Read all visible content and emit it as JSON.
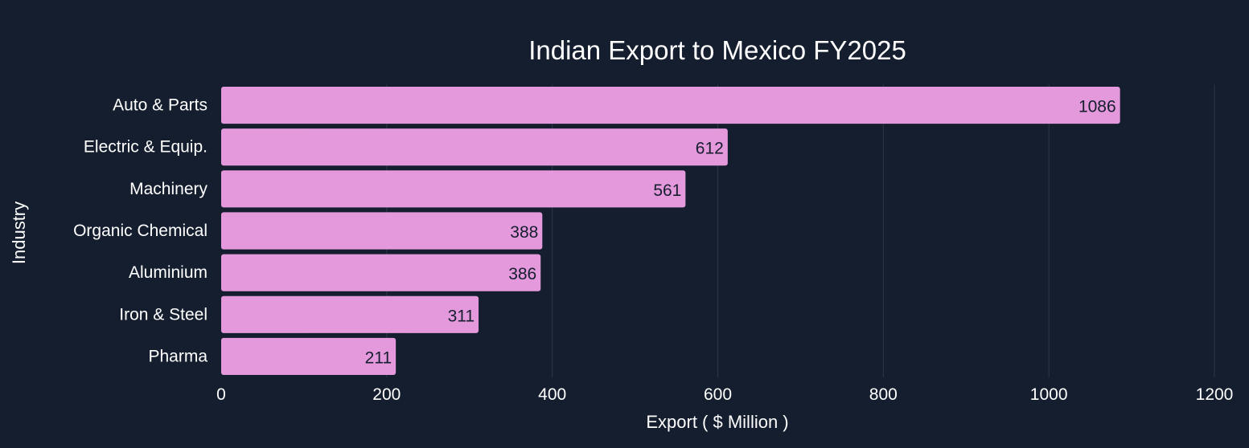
{
  "chart_data": {
    "type": "bar",
    "orientation": "horizontal",
    "title": "Indian Export to Mexico FY2025",
    "xlabel": "Export ( $ Million )",
    "ylabel": "Industry",
    "categories": [
      "Auto & Parts",
      "Electric & Equip.",
      "Machinery",
      "Organic Chemical",
      "Aluminium",
      "Iron & Steel",
      "Pharma"
    ],
    "values": [
      1086,
      612,
      561,
      388,
      386,
      311,
      211
    ],
    "xlim": [
      0,
      1200
    ],
    "xticks": [
      0,
      200,
      400,
      600,
      800,
      1000,
      1200
    ],
    "grid": true,
    "data_labels": true
  },
  "colors": {
    "background": "#141e2e",
    "bar": "#e499dc",
    "gridline": "#2c3748",
    "text": "#ffffff",
    "bar_label": "#141e2e"
  }
}
